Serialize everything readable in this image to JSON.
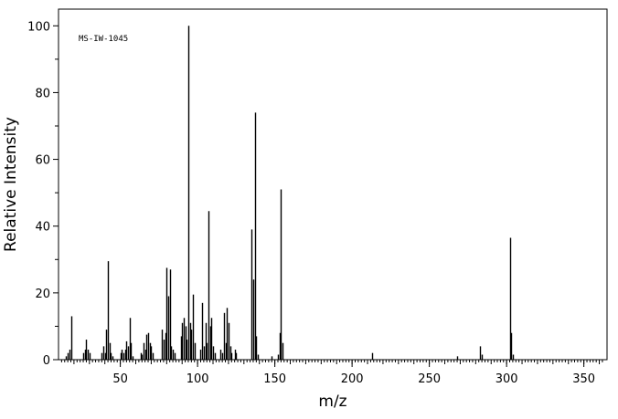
{
  "chart_data": {
    "type": "bar",
    "title": "",
    "annotation": "MS-IW-1045",
    "xlabel": "m/z",
    "ylabel": "Relative Intensity",
    "xlim": [
      10,
      365
    ],
    "ylim": [
      0,
      105
    ],
    "x_ticks": [
      50,
      100,
      150,
      200,
      250,
      300,
      350
    ],
    "y_ticks": [
      0,
      20,
      40,
      60,
      80,
      100
    ],
    "grid": false,
    "legend": "none",
    "colors": {
      "bars": "#000000",
      "frame": "#000000",
      "background": "#ffffff"
    },
    "peaks": [
      [
        15,
        1
      ],
      [
        16,
        2
      ],
      [
        17,
        3
      ],
      [
        18,
        13
      ],
      [
        26,
        2
      ],
      [
        27,
        3
      ],
      [
        28,
        6
      ],
      [
        29,
        3
      ],
      [
        30,
        2
      ],
      [
        38,
        2
      ],
      [
        39,
        4
      ],
      [
        40,
        2
      ],
      [
        41,
        9
      ],
      [
        42,
        29.5
      ],
      [
        43,
        5
      ],
      [
        44,
        2
      ],
      [
        45,
        1
      ],
      [
        50,
        2
      ],
      [
        51,
        3
      ],
      [
        52,
        2
      ],
      [
        53,
        3
      ],
      [
        54,
        5.5
      ],
      [
        55,
        4
      ],
      [
        56,
        12.5
      ],
      [
        57,
        5
      ],
      [
        58,
        1
      ],
      [
        63,
        2
      ],
      [
        64,
        1.5
      ],
      [
        65,
        5
      ],
      [
        66,
        3
      ],
      [
        67,
        7.5
      ],
      [
        68,
        8
      ],
      [
        69,
        5
      ],
      [
        70,
        4
      ],
      [
        71,
        2
      ],
      [
        77,
        9
      ],
      [
        78,
        6
      ],
      [
        79,
        8
      ],
      [
        80,
        27.5
      ],
      [
        81,
        19
      ],
      [
        82,
        27
      ],
      [
        83,
        4
      ],
      [
        84,
        3
      ],
      [
        85,
        2
      ],
      [
        89,
        7
      ],
      [
        90,
        11
      ],
      [
        91,
        12.5
      ],
      [
        92,
        10
      ],
      [
        93,
        6
      ],
      [
        94,
        100
      ],
      [
        95,
        11
      ],
      [
        96,
        9
      ],
      [
        97,
        19.5
      ],
      [
        98,
        5
      ],
      [
        102,
        3
      ],
      [
        103,
        17
      ],
      [
        104,
        4
      ],
      [
        105,
        11
      ],
      [
        106,
        5
      ],
      [
        107,
        44.5
      ],
      [
        108,
        10
      ],
      [
        109,
        12.5
      ],
      [
        110,
        4
      ],
      [
        111,
        2
      ],
      [
        115,
        3
      ],
      [
        116,
        2
      ],
      [
        117,
        14
      ],
      [
        118,
        5
      ],
      [
        119,
        15.5
      ],
      [
        120,
        11
      ],
      [
        121,
        4
      ],
      [
        122,
        2
      ],
      [
        124,
        3
      ],
      [
        125,
        2
      ],
      [
        135,
        39
      ],
      [
        136,
        24
      ],
      [
        137,
        74
      ],
      [
        138,
        7
      ],
      [
        139,
        1.5
      ],
      [
        148,
        1
      ],
      [
        152,
        1.5
      ],
      [
        153,
        8
      ],
      [
        154,
        51
      ],
      [
        155,
        5
      ],
      [
        213,
        2
      ],
      [
        268,
        1
      ],
      [
        283,
        4
      ],
      [
        284,
        1.5
      ],
      [
        302,
        36.5
      ],
      [
        303,
        8
      ],
      [
        304,
        1.5
      ]
    ]
  }
}
